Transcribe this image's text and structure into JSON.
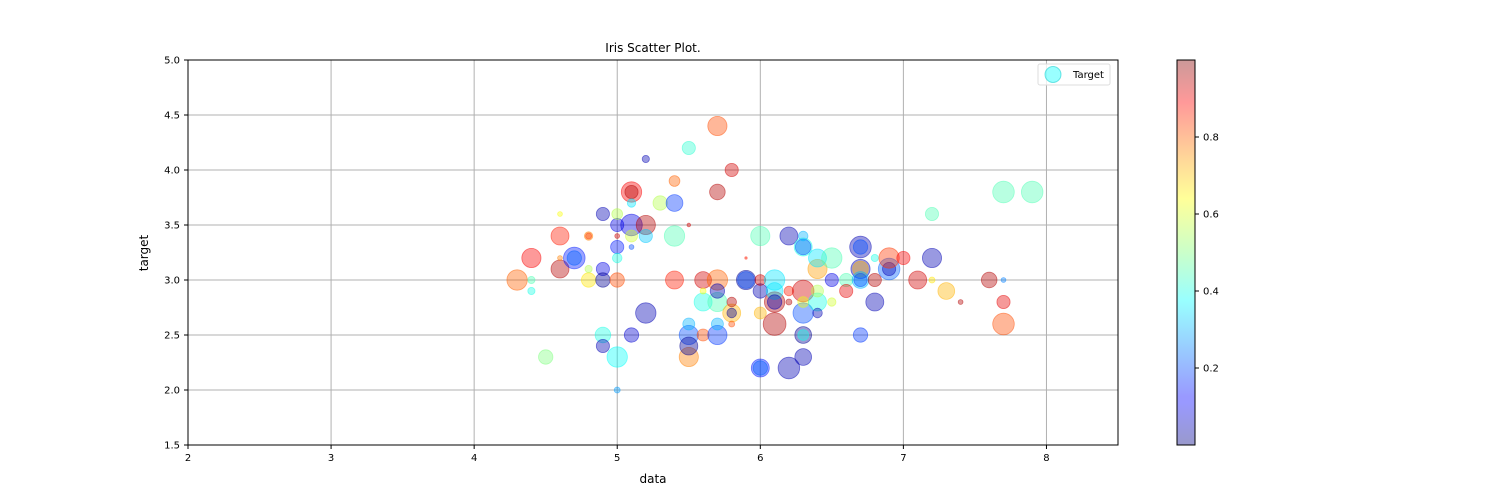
{
  "chart_data": {
    "type": "scatter",
    "title": "Iris Scatter Plot.",
    "xlabel": "data",
    "ylabel": "target",
    "xlim": [
      2,
      8.5
    ],
    "ylim": [
      1.5,
      5.0
    ],
    "xticks": [
      "2",
      "3",
      "4",
      "5",
      "6",
      "7",
      "8"
    ],
    "yticks": [
      "1.5",
      "2.0",
      "2.5",
      "3.0",
      "3.5",
      "4.0",
      "4.5",
      "5.0"
    ],
    "grid": true,
    "legend": {
      "position": "top-right",
      "entries": [
        "Target"
      ]
    },
    "colorbar": {
      "range": [
        0,
        1
      ],
      "ticks": [
        "0.2",
        "0.4",
        "0.6",
        "0.8"
      ],
      "colormap": "jet",
      "alpha": 0.4
    },
    "series": [
      {
        "name": "Target",
        "points": [
          [
            4.3,
            3.0,
            0.78,
            0.85
          ],
          [
            4.4,
            3.2,
            0.88,
            0.8
          ],
          [
            4.4,
            3.0,
            0.45,
            0.3
          ],
          [
            4.4,
            2.9,
            0.4,
            0.3
          ],
          [
            4.5,
            2.3,
            0.5,
            0.6
          ],
          [
            4.6,
            3.4,
            0.85,
            0.75
          ],
          [
            4.6,
            3.1,
            0.95,
            0.75
          ],
          [
            4.6,
            3.6,
            0.62,
            0.2
          ],
          [
            4.6,
            3.2,
            0.75,
            0.2
          ],
          [
            4.7,
            3.2,
            0.15,
            0.9
          ],
          [
            4.7,
            3.2,
            0.22,
            0.6
          ],
          [
            4.8,
            3.4,
            0.75,
            0.35
          ],
          [
            4.8,
            3.0,
            0.65,
            0.6
          ],
          [
            4.8,
            3.1,
            0.55,
            0.3
          ],
          [
            4.8,
            3.4,
            0.82,
            0.25
          ],
          [
            4.9,
            3.6,
            0.05,
            0.55
          ],
          [
            4.9,
            3.1,
            0.1,
            0.55
          ],
          [
            4.9,
            3.0,
            0.02,
            0.6
          ],
          [
            4.9,
            2.5,
            0.4,
            0.65
          ],
          [
            4.9,
            2.4,
            0.05,
            0.55
          ],
          [
            5.0,
            3.5,
            0.1,
            0.55
          ],
          [
            5.0,
            3.6,
            0.55,
            0.45
          ],
          [
            5.0,
            3.0,
            0.8,
            0.6
          ],
          [
            5.0,
            3.3,
            0.15,
            0.55
          ],
          [
            5.0,
            2.3,
            0.38,
            0.85
          ],
          [
            5.0,
            3.2,
            0.4,
            0.4
          ],
          [
            5.0,
            2.0,
            0.28,
            0.25
          ],
          [
            5.0,
            3.4,
            0.92,
            0.2
          ],
          [
            5.1,
            3.5,
            0.1,
            0.9
          ],
          [
            5.1,
            3.8,
            0.88,
            0.85
          ],
          [
            5.1,
            3.8,
            0.95,
            0.55
          ],
          [
            5.1,
            3.7,
            0.35,
            0.35
          ],
          [
            5.1,
            3.3,
            0.2,
            0.2
          ],
          [
            5.1,
            2.5,
            0.08,
            0.6
          ],
          [
            5.1,
            3.4,
            0.58,
            0.5
          ],
          [
            5.2,
            3.5,
            0.95,
            0.8
          ],
          [
            5.2,
            4.1,
            0.05,
            0.3
          ],
          [
            5.2,
            3.4,
            0.32,
            0.55
          ],
          [
            5.2,
            2.7,
            0.05,
            0.85
          ],
          [
            5.3,
            3.7,
            0.55,
            0.6
          ],
          [
            5.4,
            3.9,
            0.78,
            0.45
          ],
          [
            5.4,
            3.7,
            0.18,
            0.7
          ],
          [
            5.4,
            3.4,
            0.45,
            0.85
          ],
          [
            5.4,
            3.0,
            0.85,
            0.75
          ],
          [
            5.5,
            4.2,
            0.42,
            0.55
          ],
          [
            5.5,
            3.5,
            0.92,
            0.15
          ],
          [
            5.5,
            2.3,
            0.75,
            0.8
          ],
          [
            5.5,
            2.5,
            0.2,
            0.8
          ],
          [
            5.5,
            2.4,
            0.02,
            0.75
          ],
          [
            5.5,
            2.6,
            0.3,
            0.5
          ],
          [
            5.6,
            3.0,
            0.92,
            0.7
          ],
          [
            5.6,
            2.8,
            0.4,
            0.75
          ],
          [
            5.6,
            2.9,
            0.62,
            0.25
          ],
          [
            5.6,
            2.5,
            0.8,
            0.5
          ],
          [
            5.7,
            4.4,
            0.8,
            0.8
          ],
          [
            5.7,
            3.8,
            0.95,
            0.65
          ],
          [
            5.7,
            2.8,
            0.45,
            0.8
          ],
          [
            5.7,
            3.0,
            0.78,
            0.85
          ],
          [
            5.7,
            2.9,
            0.05,
            0.6
          ],
          [
            5.7,
            2.5,
            0.18,
            0.8
          ],
          [
            5.7,
            2.6,
            0.3,
            0.5
          ],
          [
            5.8,
            4.0,
            0.92,
            0.55
          ],
          [
            5.8,
            2.7,
            0.7,
            0.75
          ],
          [
            5.8,
            2.7,
            0.02,
            0.4
          ],
          [
            5.8,
            2.8,
            0.95,
            0.4
          ],
          [
            5.8,
            2.6,
            0.8,
            0.25
          ],
          [
            5.9,
            3.0,
            0.02,
            0.8
          ],
          [
            5.9,
            3.0,
            0.2,
            0.7
          ],
          [
            5.9,
            3.2,
            0.85,
            0.1
          ],
          [
            6.0,
            3.4,
            0.45,
            0.8
          ],
          [
            6.0,
            2.2,
            0.15,
            0.75
          ],
          [
            6.0,
            2.2,
            0.22,
            0.6
          ],
          [
            6.0,
            2.9,
            0.05,
            0.6
          ],
          [
            6.0,
            3.0,
            0.92,
            0.45
          ],
          [
            6.0,
            2.7,
            0.7,
            0.5
          ],
          [
            6.1,
            3.0,
            0.35,
            0.85
          ],
          [
            6.1,
            2.8,
            0.95,
            0.85
          ],
          [
            6.1,
            2.6,
            0.95,
            0.95
          ],
          [
            6.1,
            2.9,
            0.35,
            0.7
          ],
          [
            6.1,
            2.8,
            0.05,
            0.6
          ],
          [
            6.2,
            3.4,
            0.05,
            0.75
          ],
          [
            6.2,
            2.2,
            0.05,
            0.9
          ],
          [
            6.2,
            2.9,
            0.85,
            0.4
          ],
          [
            6.2,
            2.8,
            0.95,
            0.25
          ],
          [
            6.3,
            3.3,
            0.4,
            0.75
          ],
          [
            6.3,
            3.3,
            0.2,
            0.65
          ],
          [
            6.3,
            3.4,
            0.3,
            0.4
          ],
          [
            6.3,
            2.9,
            0.92,
            0.9
          ],
          [
            6.3,
            2.7,
            0.2,
            0.85
          ],
          [
            6.3,
            2.5,
            0.02,
            0.7
          ],
          [
            6.3,
            2.5,
            0.4,
            0.45
          ],
          [
            6.3,
            2.3,
            0.05,
            0.7
          ],
          [
            6.3,
            2.8,
            0.6,
            0.45
          ],
          [
            6.4,
            3.1,
            0.72,
            0.8
          ],
          [
            6.4,
            3.2,
            0.35,
            0.75
          ],
          [
            6.4,
            2.8,
            0.4,
            0.75
          ],
          [
            6.4,
            2.9,
            0.55,
            0.5
          ],
          [
            6.4,
            2.7,
            0.05,
            0.4
          ],
          [
            6.5,
            3.2,
            0.45,
            0.85
          ],
          [
            6.5,
            3.0,
            0.1,
            0.55
          ],
          [
            6.5,
            2.8,
            0.58,
            0.35
          ],
          [
            6.6,
            3.0,
            0.45,
            0.55
          ],
          [
            6.6,
            2.9,
            0.9,
            0.55
          ],
          [
            6.7,
            3.3,
            0.05,
            0.9
          ],
          [
            6.7,
            3.3,
            0.2,
            0.6
          ],
          [
            6.7,
            3.1,
            0.05,
            0.8
          ],
          [
            6.7,
            3.1,
            0.7,
            0.65
          ],
          [
            6.7,
            3.0,
            0.3,
            0.7
          ],
          [
            6.7,
            3.0,
            0.2,
            0.55
          ],
          [
            6.7,
            2.5,
            0.18,
            0.6
          ],
          [
            6.8,
            3.0,
            0.95,
            0.55
          ],
          [
            6.8,
            3.2,
            0.4,
            0.3
          ],
          [
            6.8,
            2.8,
            0.05,
            0.75
          ],
          [
            6.9,
            3.1,
            0.22,
            0.9
          ],
          [
            6.9,
            3.1,
            0.05,
            0.55
          ],
          [
            6.9,
            3.2,
            0.82,
            0.85
          ],
          [
            7.0,
            3.2,
            0.88,
            0.55
          ],
          [
            7.1,
            3.0,
            0.92,
            0.75
          ],
          [
            7.2,
            3.6,
            0.45,
            0.55
          ],
          [
            7.2,
            3.2,
            0.05,
            0.8
          ],
          [
            7.2,
            3.0,
            0.65,
            0.25
          ],
          [
            7.3,
            2.9,
            0.7,
            0.7
          ],
          [
            7.4,
            2.8,
            0.95,
            0.2
          ],
          [
            7.6,
            3.0,
            0.95,
            0.65
          ],
          [
            7.7,
            3.8,
            0.45,
            0.9
          ],
          [
            7.7,
            2.6,
            0.8,
            0.9
          ],
          [
            7.7,
            2.8,
            0.9,
            0.55
          ],
          [
            7.7,
            3.0,
            0.25,
            0.2
          ],
          [
            7.9,
            3.8,
            0.45,
            0.9
          ]
        ]
      }
    ]
  }
}
